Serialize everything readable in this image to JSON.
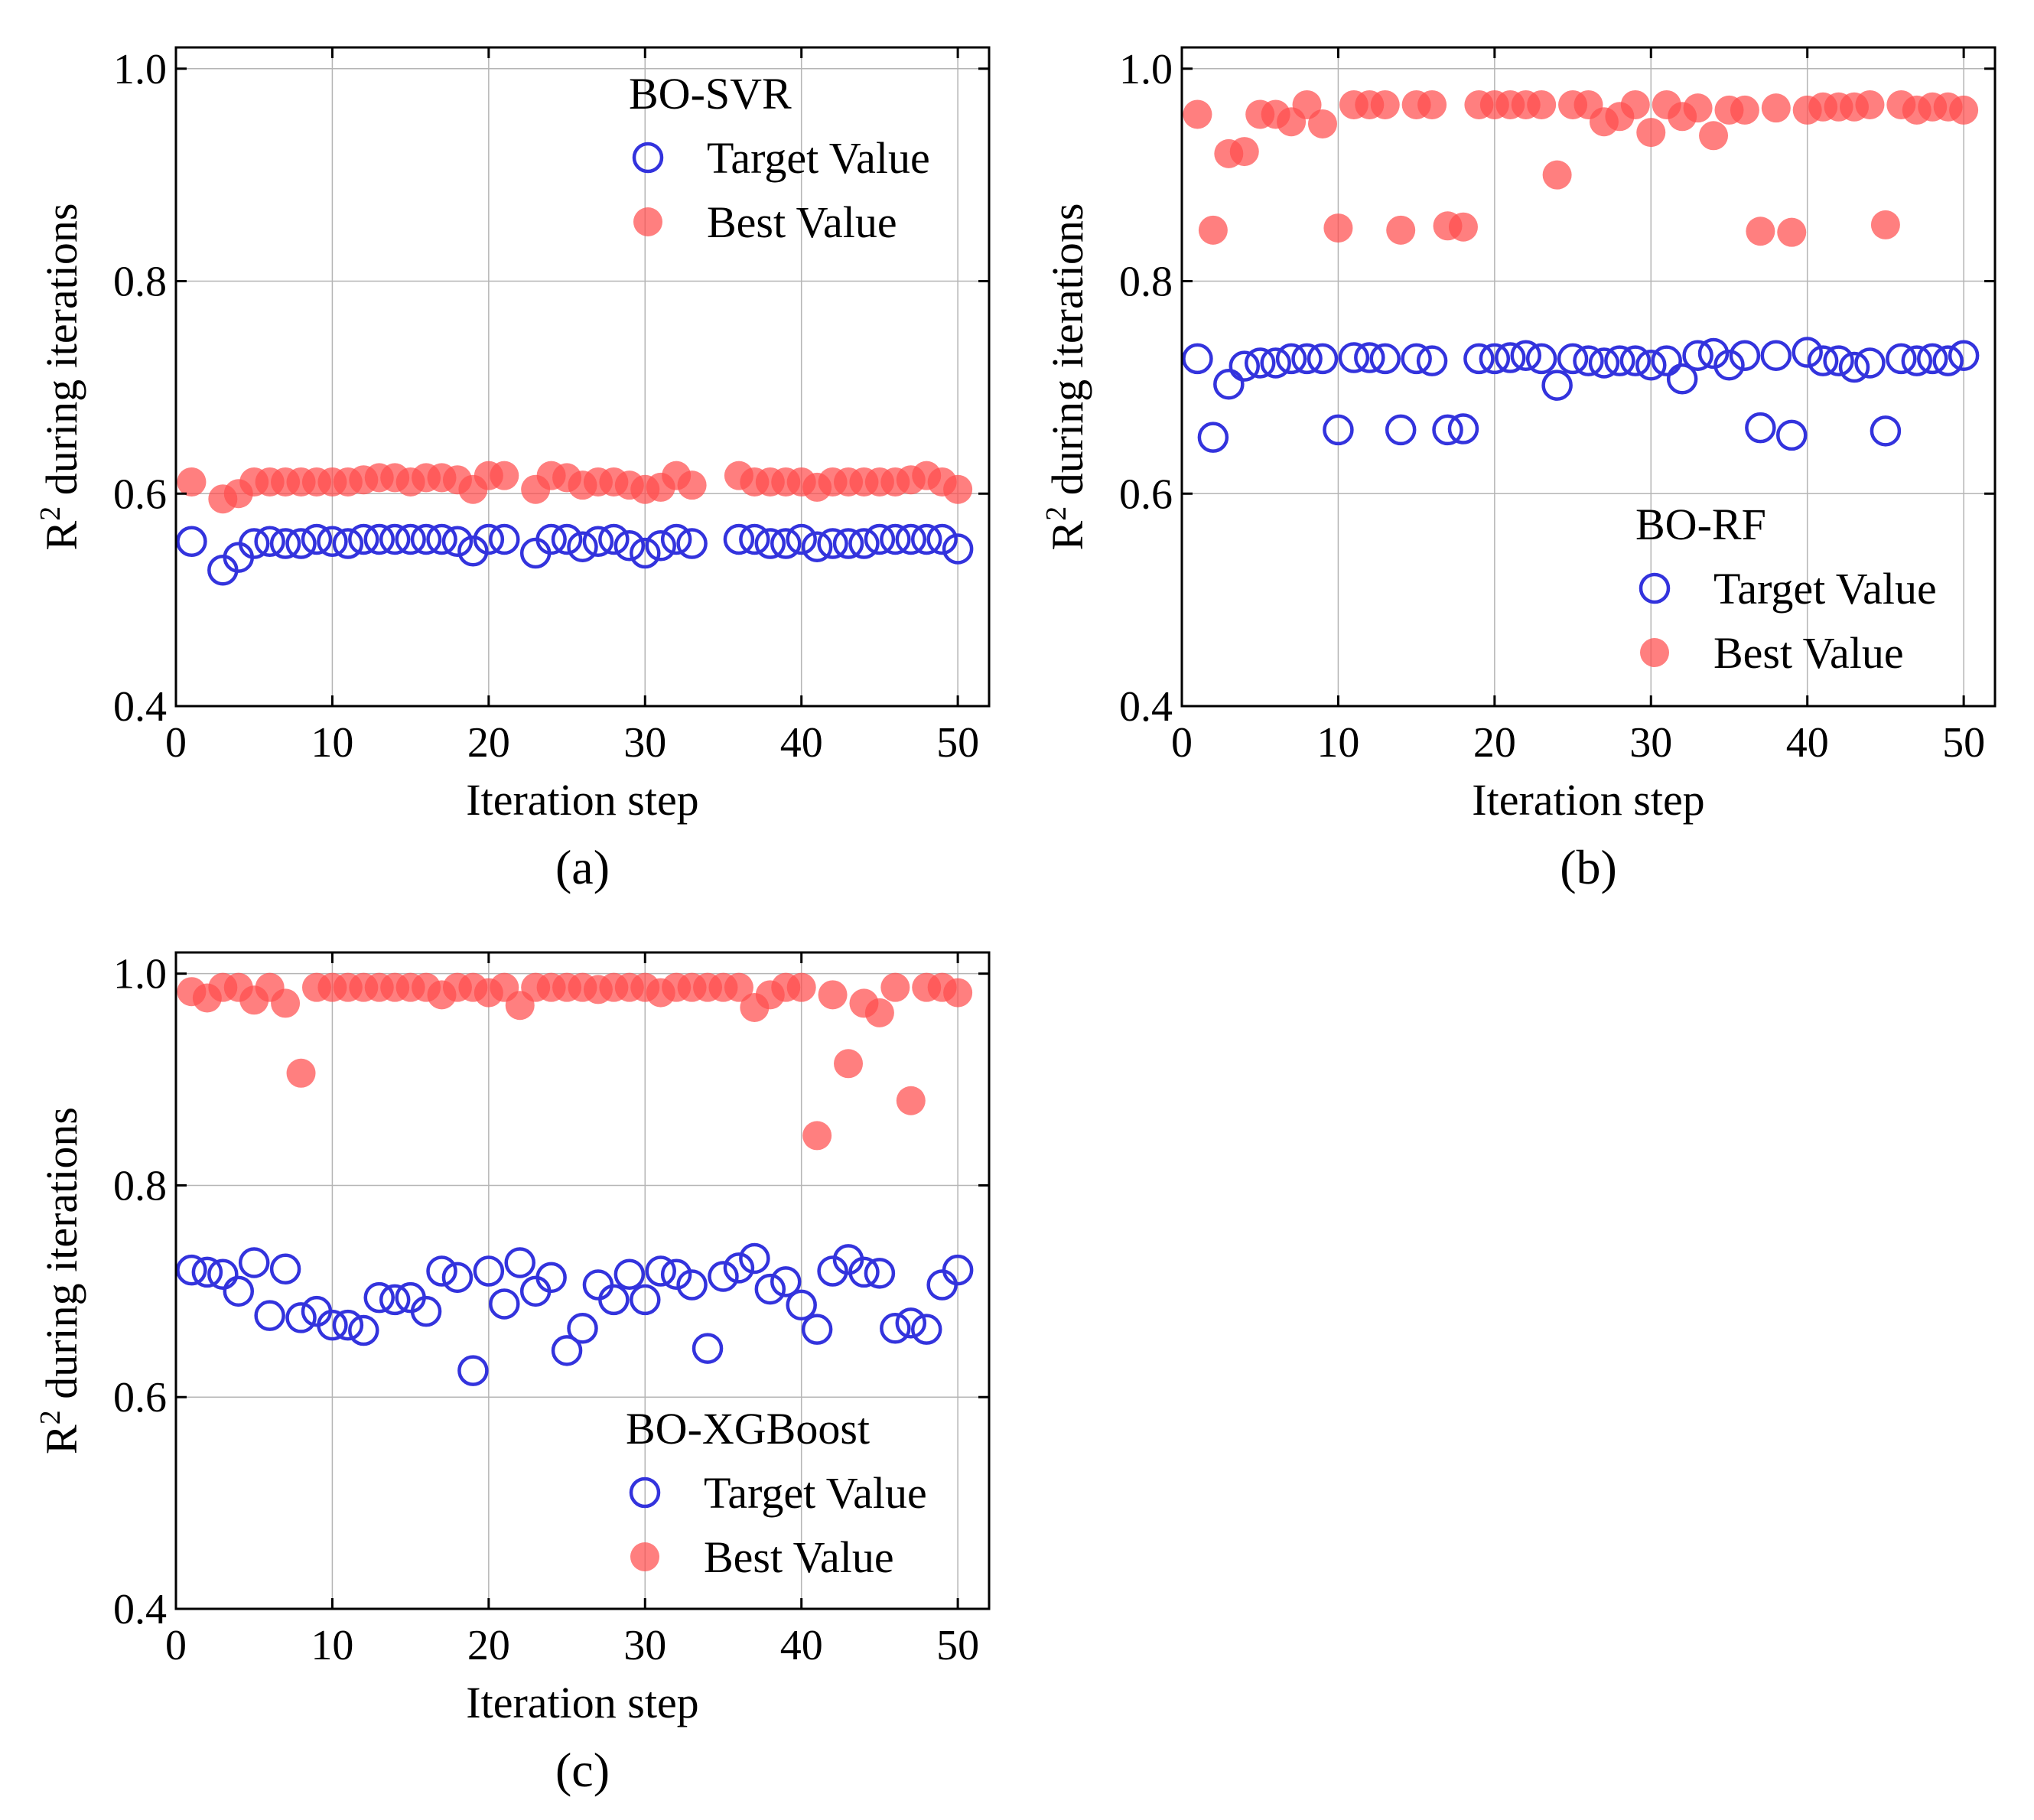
{
  "chart_data": [
    {
      "type": "scatter",
      "panel_label": "(a)",
      "legend_title": "BO-SVR",
      "legend_position": "top-right",
      "xlabel": "Iteration step",
      "ylabel_base": "R",
      "ylabel_sup": "2",
      "ylabel_rest": " during iterations",
      "xlim": [
        0,
        52
      ],
      "ylim": [
        0.4,
        1.02
      ],
      "xticks": [
        0,
        10,
        20,
        30,
        40,
        50
      ],
      "xtick_labels": [
        "0",
        "10",
        "20",
        "30",
        "40",
        "50"
      ],
      "yticks": [
        0.4,
        0.6,
        0.8,
        1.0
      ],
      "ytick_labels": [
        "0.4",
        "0.6",
        "0.8",
        "1.0"
      ],
      "grid": true,
      "series": [
        {
          "name": "Target Value",
          "marker": "open-circle",
          "color": "#3333dd",
          "x": [
            1,
            3,
            4,
            5,
            6,
            7,
            8,
            9,
            10,
            11,
            12,
            13,
            14,
            15,
            16,
            17,
            18,
            19,
            20,
            21,
            23,
            24,
            25,
            26,
            27,
            28,
            29,
            30,
            31,
            32,
            33,
            36,
            37,
            38,
            39,
            40,
            41,
            42,
            43,
            44,
            45,
            46,
            47,
            48,
            49,
            50
          ],
          "y": [
            0.555,
            0.528,
            0.54,
            0.553,
            0.555,
            0.553,
            0.553,
            0.557,
            0.555,
            0.553,
            0.557,
            0.557,
            0.557,
            0.557,
            0.557,
            0.557,
            0.555,
            0.546,
            0.557,
            0.557,
            0.544,
            0.557,
            0.557,
            0.55,
            0.555,
            0.557,
            0.551,
            0.544,
            0.551,
            0.557,
            0.553,
            0.557,
            0.557,
            0.553,
            0.553,
            0.557,
            0.55,
            0.553,
            0.553,
            0.553,
            0.557,
            0.557,
            0.557,
            0.557,
            0.557,
            0.548
          ]
        },
        {
          "name": "Best Value",
          "marker": "filled-circle",
          "color": "#ff4d4d",
          "x": [
            1,
            3,
            4,
            5,
            6,
            7,
            8,
            9,
            10,
            11,
            12,
            13,
            14,
            15,
            16,
            17,
            18,
            19,
            20,
            21,
            23,
            24,
            25,
            26,
            27,
            28,
            29,
            30,
            31,
            32,
            33,
            36,
            37,
            38,
            39,
            40,
            41,
            42,
            43,
            44,
            45,
            46,
            47,
            48,
            49,
            50
          ],
          "y": [
            0.611,
            0.595,
            0.6,
            0.611,
            0.611,
            0.611,
            0.611,
            0.611,
            0.611,
            0.611,
            0.613,
            0.615,
            0.615,
            0.611,
            0.615,
            0.615,
            0.613,
            0.604,
            0.617,
            0.617,
            0.604,
            0.617,
            0.615,
            0.608,
            0.611,
            0.611,
            0.608,
            0.604,
            0.606,
            0.617,
            0.608,
            0.617,
            0.611,
            0.611,
            0.611,
            0.611,
            0.606,
            0.611,
            0.611,
            0.611,
            0.611,
            0.611,
            0.613,
            0.617,
            0.611,
            0.604
          ]
        }
      ]
    },
    {
      "type": "scatter",
      "panel_label": "(b)",
      "legend_title": "BO-RF",
      "legend_position": "bottom-right",
      "xlabel": "Iteration step",
      "ylabel_base": "R",
      "ylabel_sup": "2",
      "ylabel_rest": " during iterations",
      "xlim": [
        0,
        52
      ],
      "ylim": [
        0.4,
        1.02
      ],
      "xticks": [
        0,
        10,
        20,
        30,
        40,
        50
      ],
      "xtick_labels": [
        "0",
        "10",
        "20",
        "30",
        "40",
        "50"
      ],
      "yticks": [
        0.4,
        0.6,
        0.8,
        1.0
      ],
      "ytick_labels": [
        "0.4",
        "0.6",
        "0.8",
        "1.0"
      ],
      "grid": true,
      "series": [
        {
          "name": "Target Value",
          "marker": "open-circle",
          "color": "#3333dd",
          "x": [
            1,
            2,
            3,
            4,
            5,
            6,
            7,
            8,
            9,
            10,
            11,
            12,
            13,
            14,
            15,
            16,
            17,
            18,
            19,
            20,
            21,
            22,
            23,
            24,
            25,
            26,
            27,
            28,
            29,
            30,
            31,
            32,
            33,
            34,
            35,
            36,
            37,
            38,
            39,
            40,
            41,
            42,
            43,
            44,
            45,
            46,
            47,
            48,
            49,
            50
          ],
          "y": [
            0.727,
            0.653,
            0.703,
            0.72,
            0.723,
            0.723,
            0.727,
            0.727,
            0.727,
            0.66,
            0.728,
            0.728,
            0.727,
            0.66,
            0.727,
            0.725,
            0.66,
            0.661,
            0.727,
            0.727,
            0.728,
            0.73,
            0.727,
            0.702,
            0.727,
            0.725,
            0.723,
            0.725,
            0.725,
            0.721,
            0.725,
            0.708,
            0.73,
            0.732,
            0.721,
            0.73,
            0.662,
            0.73,
            0.655,
            0.733,
            0.725,
            0.725,
            0.719,
            0.723,
            0.659,
            0.727,
            0.725,
            0.727,
            0.725,
            0.73
          ]
        },
        {
          "name": "Best Value",
          "marker": "filled-circle",
          "color": "#ff4d4d",
          "x": [
            1,
            2,
            3,
            4,
            5,
            6,
            7,
            8,
            9,
            10,
            11,
            12,
            13,
            14,
            15,
            16,
            17,
            18,
            19,
            20,
            21,
            22,
            23,
            24,
            25,
            26,
            27,
            28,
            29,
            30,
            31,
            32,
            33,
            34,
            35,
            36,
            37,
            38,
            39,
            40,
            41,
            42,
            43,
            44,
            45,
            46,
            47,
            48,
            49,
            50
          ],
          "y": [
            0.957,
            0.848,
            0.92,
            0.922,
            0.957,
            0.957,
            0.95,
            0.966,
            0.948,
            0.85,
            0.966,
            0.966,
            0.966,
            0.848,
            0.966,
            0.966,
            0.852,
            0.851,
            0.966,
            0.966,
            0.966,
            0.966,
            0.966,
            0.9,
            0.966,
            0.966,
            0.95,
            0.955,
            0.966,
            0.94,
            0.966,
            0.955,
            0.963,
            0.937,
            0.961,
            0.961,
            0.847,
            0.963,
            0.846,
            0.961,
            0.964,
            0.964,
            0.964,
            0.966,
            0.853,
            0.966,
            0.961,
            0.964,
            0.964,
            0.961
          ]
        }
      ]
    },
    {
      "type": "scatter",
      "panel_label": "(c)",
      "legend_title": "BO-XGBoost",
      "legend_position": "bottom-right",
      "xlabel": "Iteration step",
      "ylabel_base": "R",
      "ylabel_sup": "2",
      "ylabel_rest": " during iterations",
      "xlim": [
        0,
        52
      ],
      "ylim": [
        0.4,
        1.02
      ],
      "xticks": [
        0,
        10,
        20,
        30,
        40,
        50
      ],
      "xtick_labels": [
        "0",
        "10",
        "20",
        "30",
        "40",
        "50"
      ],
      "yticks": [
        0.4,
        0.6,
        0.8,
        1.0
      ],
      "ytick_labels": [
        "0.4",
        "0.6",
        "0.8",
        "1.0"
      ],
      "grid": true,
      "series": [
        {
          "name": "Target Value",
          "marker": "open-circle",
          "color": "#3333dd",
          "x": [
            1,
            2,
            3,
            4,
            5,
            6,
            7,
            8,
            9,
            10,
            11,
            12,
            13,
            14,
            15,
            16,
            17,
            18,
            19,
            20,
            21,
            22,
            23,
            24,
            25,
            26,
            27,
            28,
            29,
            30,
            31,
            32,
            33,
            34,
            35,
            36,
            37,
            38,
            39,
            40,
            41,
            42,
            43,
            44,
            45,
            46,
            47,
            48,
            49,
            50
          ],
          "y": [
            0.72,
            0.718,
            0.716,
            0.7,
            0.727,
            0.677,
            0.721,
            0.675,
            0.681,
            0.668,
            0.668,
            0.663,
            0.694,
            0.692,
            0.694,
            0.681,
            0.719,
            0.713,
            0.625,
            0.719,
            0.688,
            0.727,
            0.7,
            0.713,
            0.644,
            0.665,
            0.706,
            0.692,
            0.716,
            0.692,
            0.719,
            0.716,
            0.706,
            0.646,
            0.714,
            0.722,
            0.731,
            0.702,
            0.709,
            0.687,
            0.664,
            0.719,
            0.73,
            0.718,
            0.717,
            0.665,
            0.67,
            0.664,
            0.706,
            0.72
          ]
        },
        {
          "name": "Best Value",
          "marker": "filled-circle",
          "color": "#ff4d4d",
          "x": [
            1,
            2,
            3,
            4,
            5,
            6,
            7,
            8,
            9,
            10,
            11,
            12,
            13,
            14,
            15,
            16,
            17,
            18,
            19,
            20,
            21,
            22,
            23,
            24,
            25,
            26,
            27,
            28,
            29,
            30,
            31,
            32,
            33,
            34,
            35,
            36,
            37,
            38,
            39,
            40,
            41,
            42,
            43,
            44,
            45,
            46,
            47,
            48,
            49,
            50
          ],
          "y": [
            0.983,
            0.977,
            0.987,
            0.987,
            0.975,
            0.987,
            0.972,
            0.906,
            0.987,
            0.987,
            0.987,
            0.987,
            0.987,
            0.987,
            0.987,
            0.987,
            0.98,
            0.987,
            0.987,
            0.982,
            0.987,
            0.97,
            0.987,
            0.987,
            0.987,
            0.987,
            0.985,
            0.987,
            0.987,
            0.987,
            0.982,
            0.987,
            0.987,
            0.987,
            0.987,
            0.987,
            0.968,
            0.98,
            0.987,
            0.987,
            0.847,
            0.98,
            0.915,
            0.972,
            0.963,
            0.987,
            0.88,
            0.987,
            0.987,
            0.982
          ]
        }
      ]
    }
  ]
}
